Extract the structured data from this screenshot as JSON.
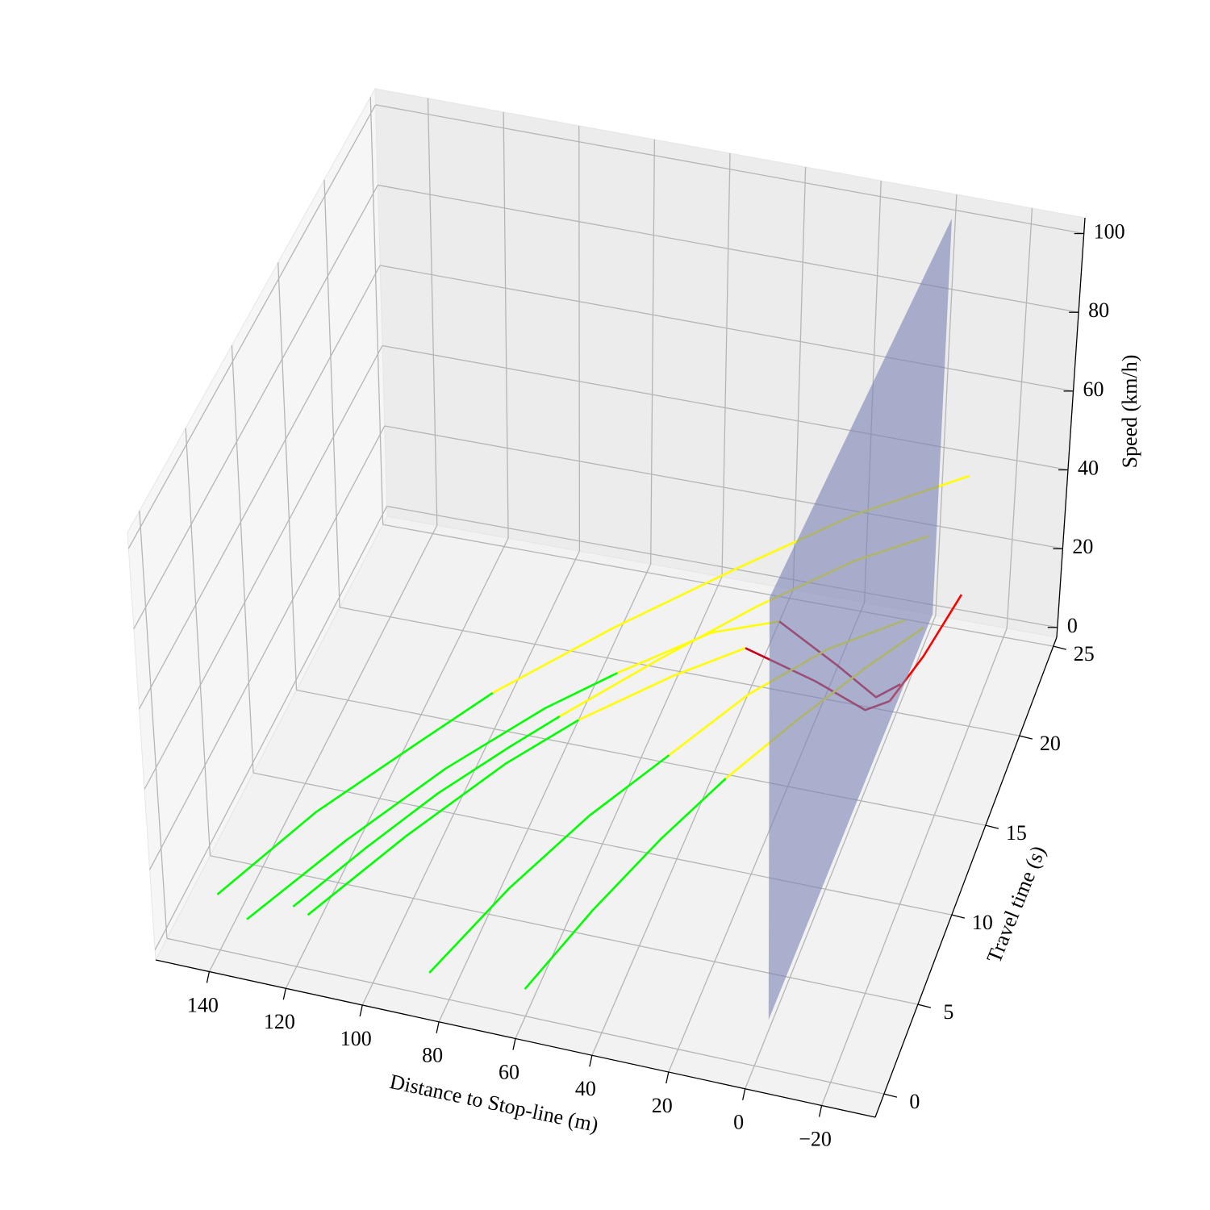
{
  "chart_data": {
    "type": "line3d",
    "x_label": "Distance to Stop-line (m)",
    "y_label": "Travel time (s)",
    "z_label": "Speed (km/h)",
    "xlim": [
      -34,
      154
    ],
    "ylim": [
      -1.3,
      25.5
    ],
    "zlim": [
      -2.5,
      104
    ],
    "xticks": [
      140,
      120,
      100,
      80,
      60,
      40,
      20,
      0,
      {
        "value": -20,
        "label": "−20"
      }
    ],
    "yticks": [
      0,
      5,
      10,
      15,
      20,
      25
    ],
    "zticks": [
      0,
      20,
      40,
      60,
      80,
      100
    ],
    "grid": true,
    "stop_plane": {
      "x": 0,
      "y": [
        2,
        25
      ],
      "z": [
        0,
        100
      ],
      "color": "#7a82b4"
    },
    "series": [
      {
        "color": "#00ff00",
        "x": [
          125,
          110,
          95,
          80,
          70
        ],
        "y": [
          2,
          4,
          6,
          8,
          9.5
        ],
        "z": [
          3,
          12,
          20,
          26,
          29
        ]
      },
      {
        "color": "#ffff00",
        "x": [
          70,
          50,
          30,
          10,
          -5
        ],
        "y": [
          9.5,
          12.5,
          15.5,
          18.5,
          21
        ],
        "z": [
          29,
          34,
          38,
          40,
          38
        ]
      },
      {
        "color": "#00ff00",
        "x": [
          145,
          125,
          105,
          90
        ],
        "y": [
          2,
          5,
          8,
          10.5
        ],
        "z": [
          2,
          14,
          22,
          27
        ]
      },
      {
        "color": "#ffff00",
        "x": [
          90,
          65,
          40,
          15,
          -10
        ],
        "y": [
          10.5,
          14,
          17.5,
          21,
          24
        ],
        "z": [
          27,
          33,
          37,
          40,
          41
        ]
      },
      {
        "color": "#00ff00",
        "x": [
          120,
          100,
          80,
          65
        ],
        "y": [
          1.5,
          4.5,
          7.5,
          9.5
        ],
        "z": [
          4,
          15,
          24,
          29
        ]
      },
      {
        "color": "#ffff00",
        "x": [
          65,
          45,
          30
        ],
        "y": [
          9.5,
          12,
          14
        ],
        "z": [
          29,
          33,
          34
        ]
      },
      {
        "color": "#c8001e",
        "x": [
          30,
          15,
          5,
          2
        ],
        "y": [
          14,
          16,
          18,
          20
        ],
        "z": [
          34,
          20,
          6,
          0
        ]
      },
      {
        "color": "#ff0000",
        "x": [
          2,
          -5,
          -12
        ],
        "y": [
          20,
          21,
          22.5
        ],
        "z": [
          0,
          8,
          18
        ]
      },
      {
        "color": "#00ff00",
        "x": [
          135,
          115,
          95,
          75,
          60
        ],
        "y": [
          1,
          4,
          7,
          10,
          12
        ],
        "z": [
          2,
          13,
          22,
          28,
          31
        ]
      },
      {
        "color": "#ffff00",
        "x": [
          60,
          40,
          25
        ],
        "y": [
          12,
          14.5,
          16
        ],
        "z": [
          31,
          34,
          33
        ]
      },
      {
        "color": "#c8001e",
        "x": [
          25,
          12,
          4,
          1
        ],
        "y": [
          16,
          17.5,
          19,
          21
        ],
        "z": [
          33,
          18,
          5,
          0
        ]
      },
      {
        "color": "#00ff00",
        "x": [
          85,
          70,
          55,
          40
        ],
        "y": [
          0,
          3,
          6,
          9
        ],
        "z": [
          3,
          14,
          22,
          27
        ]
      },
      {
        "color": "#ffff00",
        "x": [
          40,
          25,
          10,
          -5
        ],
        "y": [
          9,
          12,
          15,
          18
        ],
        "z": [
          27,
          32,
          33,
          30
        ]
      },
      {
        "color": "#00ff00",
        "x": [
          60,
          48,
          36,
          25
        ],
        "y": [
          0,
          3,
          6,
          9
        ],
        "z": [
          4,
          13,
          20,
          24
        ]
      },
      {
        "color": "#ffff00",
        "x": [
          25,
          12,
          0,
          -10
        ],
        "y": [
          9,
          12,
          15,
          18
        ],
        "z": [
          24,
          28,
          30,
          29
        ]
      }
    ]
  }
}
